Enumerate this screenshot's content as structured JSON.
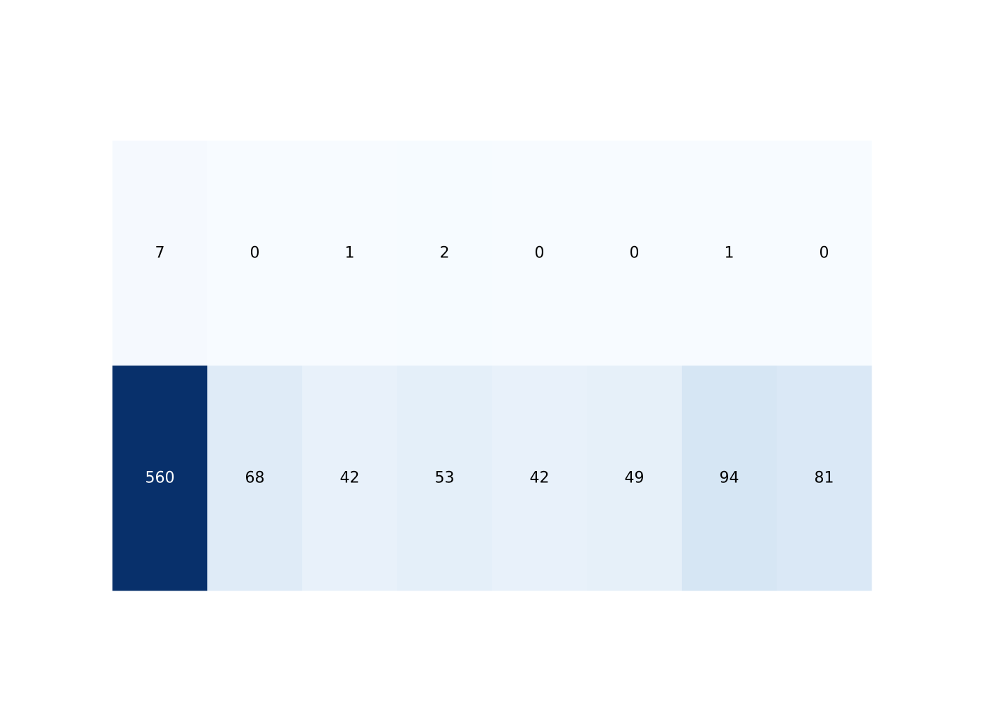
{
  "chart_data": {
    "type": "heatmap",
    "title": "",
    "xlabel": "",
    "ylabel": "",
    "x_ticks": [],
    "y_ticks": [],
    "grid": false,
    "colorscale": "Blues",
    "colorscale_min_color": "#f7fbff",
    "colorscale_max_color": "#08306b",
    "zmin": 0,
    "zmax": 560,
    "rows": [
      [
        7,
        0,
        1,
        2,
        0,
        0,
        1,
        0
      ],
      [
        560,
        68,
        42,
        53,
        42,
        49,
        94,
        81
      ]
    ],
    "label_dark_color": "#000000",
    "label_light_color": "#ffffff"
  }
}
